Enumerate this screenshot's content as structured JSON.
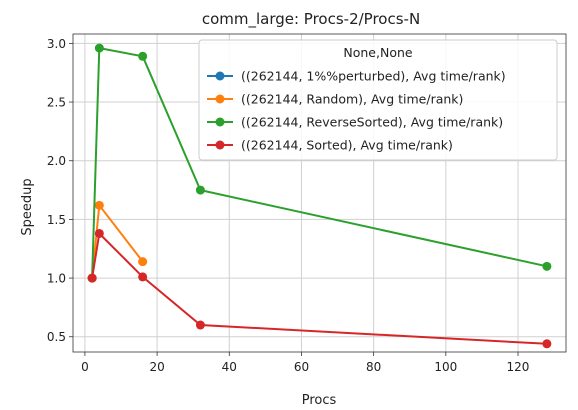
{
  "chart_data": {
    "type": "line",
    "title": "comm_large: Procs-2/Procs-N",
    "xlabel": "Procs",
    "ylabel": "Speedup",
    "xlim": [
      -3.3,
      133.3
    ],
    "ylim": [
      0.37,
      3.08
    ],
    "xticks": [
      0,
      20,
      40,
      60,
      80,
      100,
      120
    ],
    "yticks": [
      0.5,
      1.0,
      1.5,
      2.0,
      2.5,
      3.0
    ],
    "xtick_labels": [
      "0",
      "20",
      "40",
      "60",
      "80",
      "100",
      "120"
    ],
    "ytick_labels": [
      "0.5",
      "1.0",
      "1.5",
      "2.0",
      "2.5",
      "3.0"
    ],
    "grid": true,
    "legend": {
      "title": "None,None",
      "placement": "top-right"
    },
    "series": [
      {
        "name": "((262144, 1%%perturbed), Avg time/rank)",
        "color": "#1f77b4",
        "x": [],
        "y": []
      },
      {
        "name": "((262144, Random), Avg time/rank)",
        "color": "#ff7f0e",
        "x": [
          2,
          4,
          16
        ],
        "y": [
          1.0,
          1.62,
          1.14
        ]
      },
      {
        "name": "((262144, ReverseSorted), Avg time/rank)",
        "color": "#2ca02c",
        "x": [
          2,
          4,
          16,
          32,
          128
        ],
        "y": [
          1.0,
          2.96,
          2.89,
          1.75,
          1.1
        ]
      },
      {
        "name": "((262144, Sorted), Avg time/rank)",
        "color": "#d62728",
        "x": [
          2,
          4,
          16,
          32,
          128
        ],
        "y": [
          1.0,
          1.38,
          1.01,
          0.6,
          0.44
        ]
      }
    ]
  }
}
